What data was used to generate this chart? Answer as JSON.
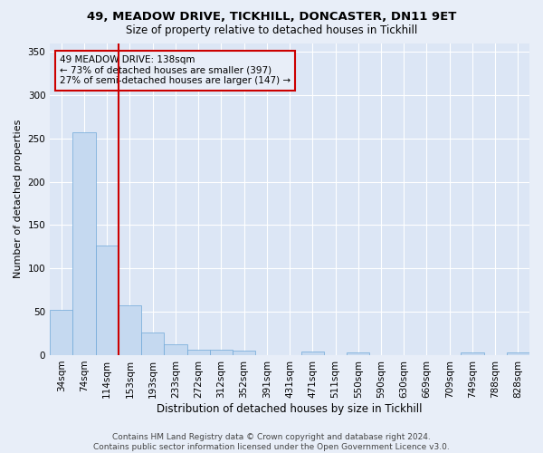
{
  "title_line1": "49, MEADOW DRIVE, TICKHILL, DONCASTER, DN11 9ET",
  "title_line2": "Size of property relative to detached houses in Tickhill",
  "xlabel": "Distribution of detached houses by size in Tickhill",
  "ylabel": "Number of detached properties",
  "footer_line1": "Contains HM Land Registry data © Crown copyright and database right 2024.",
  "footer_line2": "Contains public sector information licensed under the Open Government Licence v3.0.",
  "annotation_line1": "49 MEADOW DRIVE: 138sqm",
  "annotation_line2": "← 73% of detached houses are smaller (397)",
  "annotation_line3": "27% of semi-detached houses are larger (147) →",
  "bar_labels": [
    "34sqm",
    "74sqm",
    "114sqm",
    "153sqm",
    "193sqm",
    "233sqm",
    "272sqm",
    "312sqm",
    "352sqm",
    "391sqm",
    "431sqm",
    "471sqm",
    "511sqm",
    "550sqm",
    "590sqm",
    "630sqm",
    "669sqm",
    "709sqm",
    "749sqm",
    "788sqm",
    "828sqm"
  ],
  "bar_values": [
    52,
    257,
    126,
    57,
    26,
    12,
    6,
    6,
    5,
    0,
    0,
    4,
    0,
    3,
    0,
    0,
    0,
    0,
    3,
    0,
    3
  ],
  "bar_color": "#c5d9f0",
  "bar_edge_color": "#6fa8d8",
  "vline_color": "#cc0000",
  "vline_x_idx": 2,
  "annotation_box_edge_color": "#cc0000",
  "background_color": "#e8eef8",
  "plot_bg_color": "#dce6f5",
  "grid_color": "#ffffff",
  "ylim": [
    0,
    360
  ],
  "yticks": [
    0,
    50,
    100,
    150,
    200,
    250,
    300,
    350
  ],
  "title1_fontsize": 9.5,
  "title2_fontsize": 8.5,
  "xlabel_fontsize": 8.5,
  "ylabel_fontsize": 8,
  "tick_fontsize": 7.5,
  "annotation_fontsize": 7.5,
  "footer_fontsize": 6.5
}
